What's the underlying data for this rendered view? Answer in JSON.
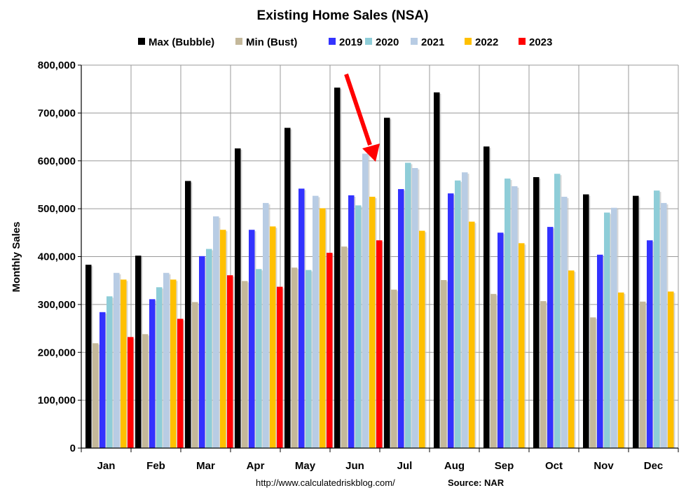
{
  "chart_data": {
    "type": "bar",
    "title": "Existing Home Sales (NSA)",
    "ylabel": "Monthly Sales",
    "xlabel": "",
    "ylim": [
      0,
      800000
    ],
    "yticks": [
      0,
      100000,
      200000,
      300000,
      400000,
      500000,
      600000,
      700000,
      800000
    ],
    "ytick_labels": [
      "0",
      "100,000",
      "200,000",
      "300,000",
      "400,000",
      "500,000",
      "600,000",
      "700,000",
      "800,000"
    ],
    "grid": true,
    "legend_position": "top",
    "categories": [
      "Jan",
      "Feb",
      "Mar",
      "Apr",
      "May",
      "Jun",
      "Jul",
      "Aug",
      "Sep",
      "Oct",
      "Nov",
      "Dec"
    ],
    "series": [
      {
        "name": "Max (Bubble)",
        "color": "#000000",
        "values": [
          383000,
          402000,
          558000,
          626000,
          669000,
          753000,
          690000,
          743000,
          630000,
          566000,
          530000,
          527000
        ]
      },
      {
        "name": "Min (Bust)",
        "color": "#c4b89a",
        "values": [
          219000,
          238000,
          305000,
          349000,
          377000,
          421000,
          331000,
          351000,
          322000,
          307000,
          273000,
          306000
        ]
      },
      {
        "name": "2019",
        "color": "#3333ff",
        "values": [
          284000,
          311000,
          401000,
          456000,
          542000,
          528000,
          541000,
          532000,
          450000,
          462000,
          404000,
          434000
        ]
      },
      {
        "name": "2020",
        "color": "#8ecdd8",
        "values": [
          317000,
          336000,
          416000,
          374000,
          372000,
          507000,
          596000,
          559000,
          563000,
          573000,
          492000,
          538000
        ]
      },
      {
        "name": "2021",
        "color": "#b8cce4",
        "values": [
          366000,
          366000,
          484000,
          512000,
          527000,
          615000,
          585000,
          576000,
          547000,
          525000,
          502000,
          512000
        ]
      },
      {
        "name": "2022",
        "color": "#ffc000",
        "values": [
          352000,
          352000,
          456000,
          463000,
          501000,
          525000,
          454000,
          473000,
          428000,
          371000,
          325000,
          327000
        ]
      },
      {
        "name": "2023",
        "color": "#ff0000",
        "values": [
          232000,
          270000,
          361000,
          337000,
          408000,
          434000,
          null,
          null,
          null,
          null,
          null,
          null
        ]
      }
    ]
  },
  "footer": {
    "url": "http://www.calculatedriskblog.com/",
    "source": "Source: NAR"
  },
  "annotation": {
    "arrow_color": "#ff0000"
  }
}
